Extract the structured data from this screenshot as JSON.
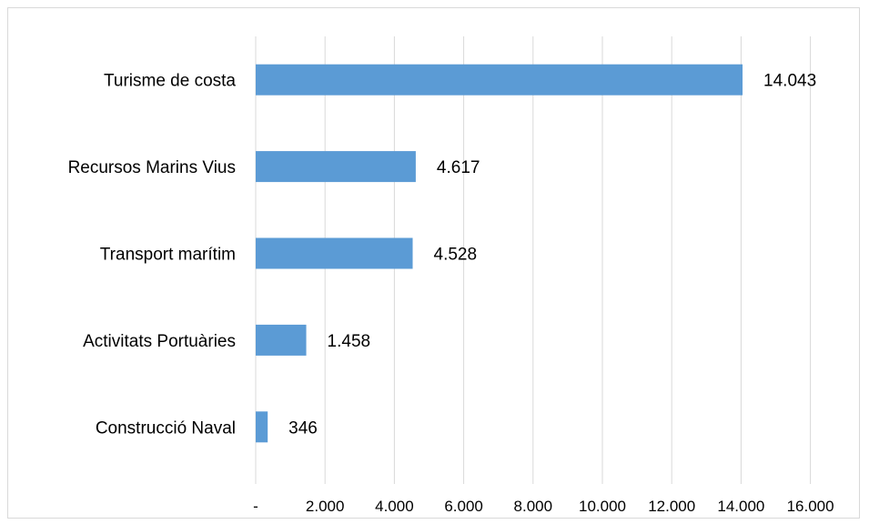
{
  "chart_data": {
    "type": "bar",
    "orientation": "horizontal",
    "categories": [
      "Turisme de costa",
      "Recursos Marins Vius",
      "Transport marítim",
      "Activitats Portuàries",
      "Construcció Naval"
    ],
    "values": [
      14043,
      4617,
      4528,
      1458,
      346
    ],
    "value_labels": [
      "14.043",
      "4.617",
      "4.528",
      "1.458",
      "346"
    ],
    "xlim": [
      0,
      16000
    ],
    "xticks": [
      0,
      2000,
      4000,
      6000,
      8000,
      10000,
      12000,
      14000,
      16000
    ],
    "xtick_labels": [
      "-",
      "2.000",
      "4.000",
      "6.000",
      "8.000",
      "10.000",
      "12.000",
      "14.000",
      "16.000"
    ],
    "grid": "vertical",
    "bar_color": "#5b9bd5",
    "title": "",
    "xlabel": "",
    "ylabel": ""
  }
}
